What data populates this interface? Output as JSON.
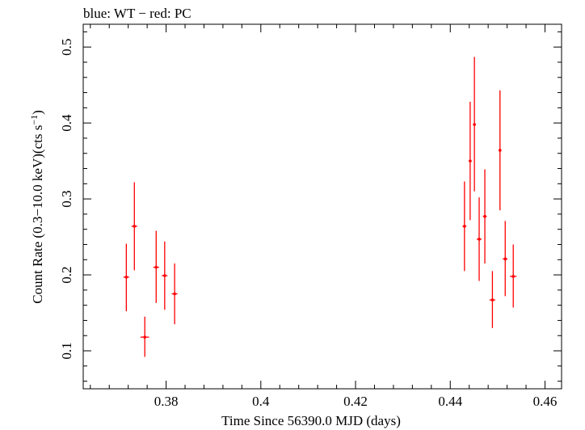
{
  "chart_data": {
    "type": "scatter",
    "title": "blue: WT − red: PC",
    "xlabel": "Time Since 56390.0 MJD (days)",
    "ylabel": "Count Rate (0.3−10.0 keV)(cts s",
    "ylabel_sup": "−1",
    "ylabel_end": ")",
    "xlim": [
      0.3625,
      0.4635
    ],
    "ylim": [
      0.05,
      0.53
    ],
    "x_ticks": [
      0.38,
      0.4,
      0.42,
      0.44,
      0.46
    ],
    "x_tick_labels": [
      "0.38",
      "0.4",
      "0.42",
      "0.44",
      "0.46"
    ],
    "y_ticks": [
      0.1,
      0.2,
      0.3,
      0.4,
      0.5
    ],
    "y_tick_labels": [
      "0.1",
      "0.2",
      "0.3",
      "0.4",
      "0.5"
    ],
    "grid": false,
    "series": [
      {
        "color": "#ff0000",
        "points": [
          {
            "x": 0.3716,
            "y": 0.197,
            "xerr": 0.0006,
            "ylo": 0.152,
            "yhi": 0.241
          },
          {
            "x": 0.3733,
            "y": 0.264,
            "xerr": 0.0006,
            "ylo": 0.206,
            "yhi": 0.322
          },
          {
            "x": 0.3755,
            "y": 0.118,
            "xerr": 0.0009,
            "ylo": 0.092,
            "yhi": 0.145
          },
          {
            "x": 0.3779,
            "y": 0.21,
            "xerr": 0.0006,
            "ylo": 0.163,
            "yhi": 0.258
          },
          {
            "x": 0.3797,
            "y": 0.199,
            "xerr": 0.0006,
            "ylo": 0.154,
            "yhi": 0.244
          },
          {
            "x": 0.3818,
            "y": 0.175,
            "xerr": 0.0006,
            "ylo": 0.135,
            "yhi": 0.215
          },
          {
            "x": 0.443,
            "y": 0.264,
            "xerr": 0.0004,
            "ylo": 0.205,
            "yhi": 0.323
          },
          {
            "x": 0.4442,
            "y": 0.35,
            "xerr": 0.0003,
            "ylo": 0.272,
            "yhi": 0.428
          },
          {
            "x": 0.4451,
            "y": 0.398,
            "xerr": 0.0003,
            "ylo": 0.31,
            "yhi": 0.487
          },
          {
            "x": 0.4461,
            "y": 0.247,
            "xerr": 0.0005,
            "ylo": 0.192,
            "yhi": 0.302
          },
          {
            "x": 0.4473,
            "y": 0.277,
            "xerr": 0.0004,
            "ylo": 0.215,
            "yhi": 0.339
          },
          {
            "x": 0.4489,
            "y": 0.167,
            "xerr": 0.0006,
            "ylo": 0.13,
            "yhi": 0.205
          },
          {
            "x": 0.4505,
            "y": 0.364,
            "xerr": 0.0003,
            "ylo": 0.285,
            "yhi": 0.443
          },
          {
            "x": 0.4516,
            "y": 0.221,
            "xerr": 0.0005,
            "ylo": 0.172,
            "yhi": 0.271
          },
          {
            "x": 0.4533,
            "y": 0.198,
            "xerr": 0.0007,
            "ylo": 0.157,
            "yhi": 0.24
          }
        ]
      }
    ]
  }
}
